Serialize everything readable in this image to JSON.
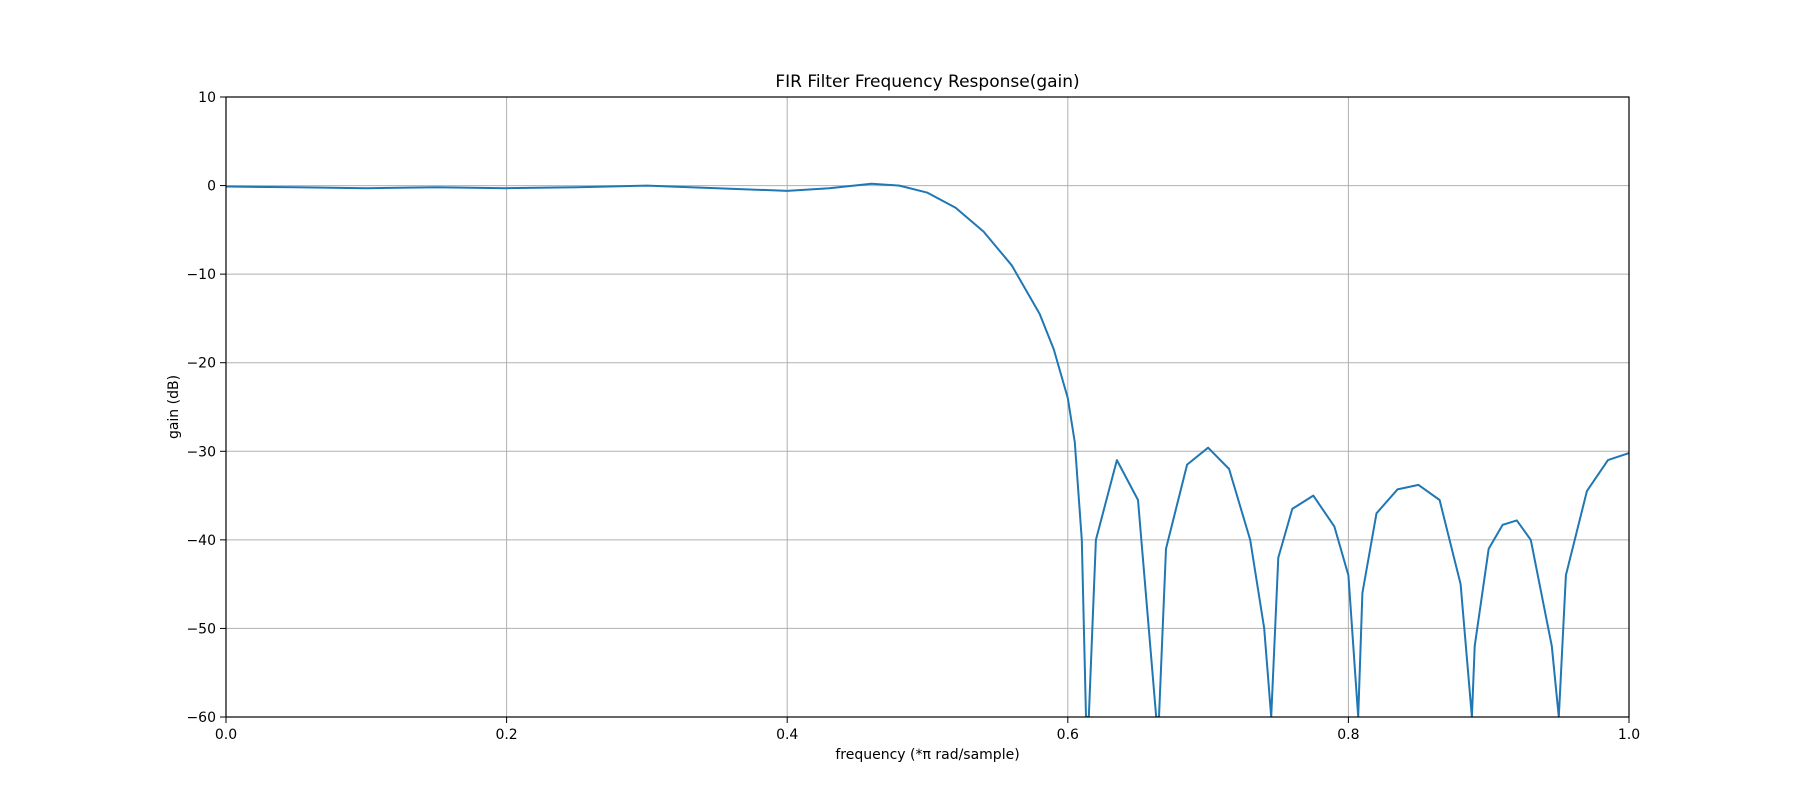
{
  "chart_data": {
    "type": "line",
    "title": "FIR Filter Frequency Response(gain)",
    "xlabel": "frequency (*π rad/sample)",
    "ylabel": "gain (dB)",
    "xlim": [
      0.0,
      1.0
    ],
    "ylim": [
      -60,
      10
    ],
    "xticks": [
      0.0,
      0.2,
      0.4,
      0.6,
      0.8,
      1.0
    ],
    "xtick_labels": [
      "0.0",
      "0.2",
      "0.4",
      "0.6",
      "0.8",
      "1.0"
    ],
    "yticks": [
      10,
      0,
      -10,
      -20,
      -30,
      -40,
      -50,
      -60
    ],
    "ytick_labels": [
      "10",
      "0",
      "−10",
      "−20",
      "−30",
      "−40",
      "−50",
      "−60"
    ],
    "grid": true,
    "series": [
      {
        "color": "#1f77b4",
        "x": [
          0.0,
          0.05,
          0.1,
          0.15,
          0.2,
          0.25,
          0.3,
          0.35,
          0.4,
          0.43,
          0.46,
          0.48,
          0.5,
          0.52,
          0.54,
          0.56,
          0.58,
          0.59,
          0.6,
          0.605,
          0.61,
          0.613,
          0.615,
          0.62,
          0.635,
          0.65,
          0.663,
          0.665,
          0.67,
          0.685,
          0.7,
          0.715,
          0.73,
          0.74,
          0.745,
          0.75,
          0.76,
          0.775,
          0.79,
          0.8,
          0.807,
          0.81,
          0.82,
          0.835,
          0.85,
          0.865,
          0.88,
          0.888,
          0.89,
          0.9,
          0.91,
          0.92,
          0.93,
          0.945,
          0.95,
          0.955,
          0.97,
          0.985,
          1.0
        ],
        "y": [
          -0.1,
          -0.2,
          -0.3,
          -0.2,
          -0.3,
          -0.2,
          0.0,
          -0.3,
          -0.6,
          -0.3,
          0.2,
          0.0,
          -0.8,
          -2.5,
          -5.2,
          -9.0,
          -14.5,
          -18.5,
          -24.0,
          -29.0,
          -40.0,
          -60.0,
          -60.0,
          -40.0,
          -31.0,
          -35.5,
          -60.0,
          -60.0,
          -41.0,
          -31.5,
          -29.6,
          -32.0,
          -40.0,
          -50.0,
          -60.0,
          -42.0,
          -36.5,
          -35.0,
          -38.5,
          -44.0,
          -60.0,
          -46.0,
          -37.0,
          -34.3,
          -33.8,
          -35.5,
          -45.0,
          -60.0,
          -52.0,
          -41.0,
          -38.3,
          -37.8,
          -40.0,
          -52.0,
          -60.0,
          -44.0,
          -34.5,
          -31.0,
          -30.2
        ]
      }
    ]
  }
}
